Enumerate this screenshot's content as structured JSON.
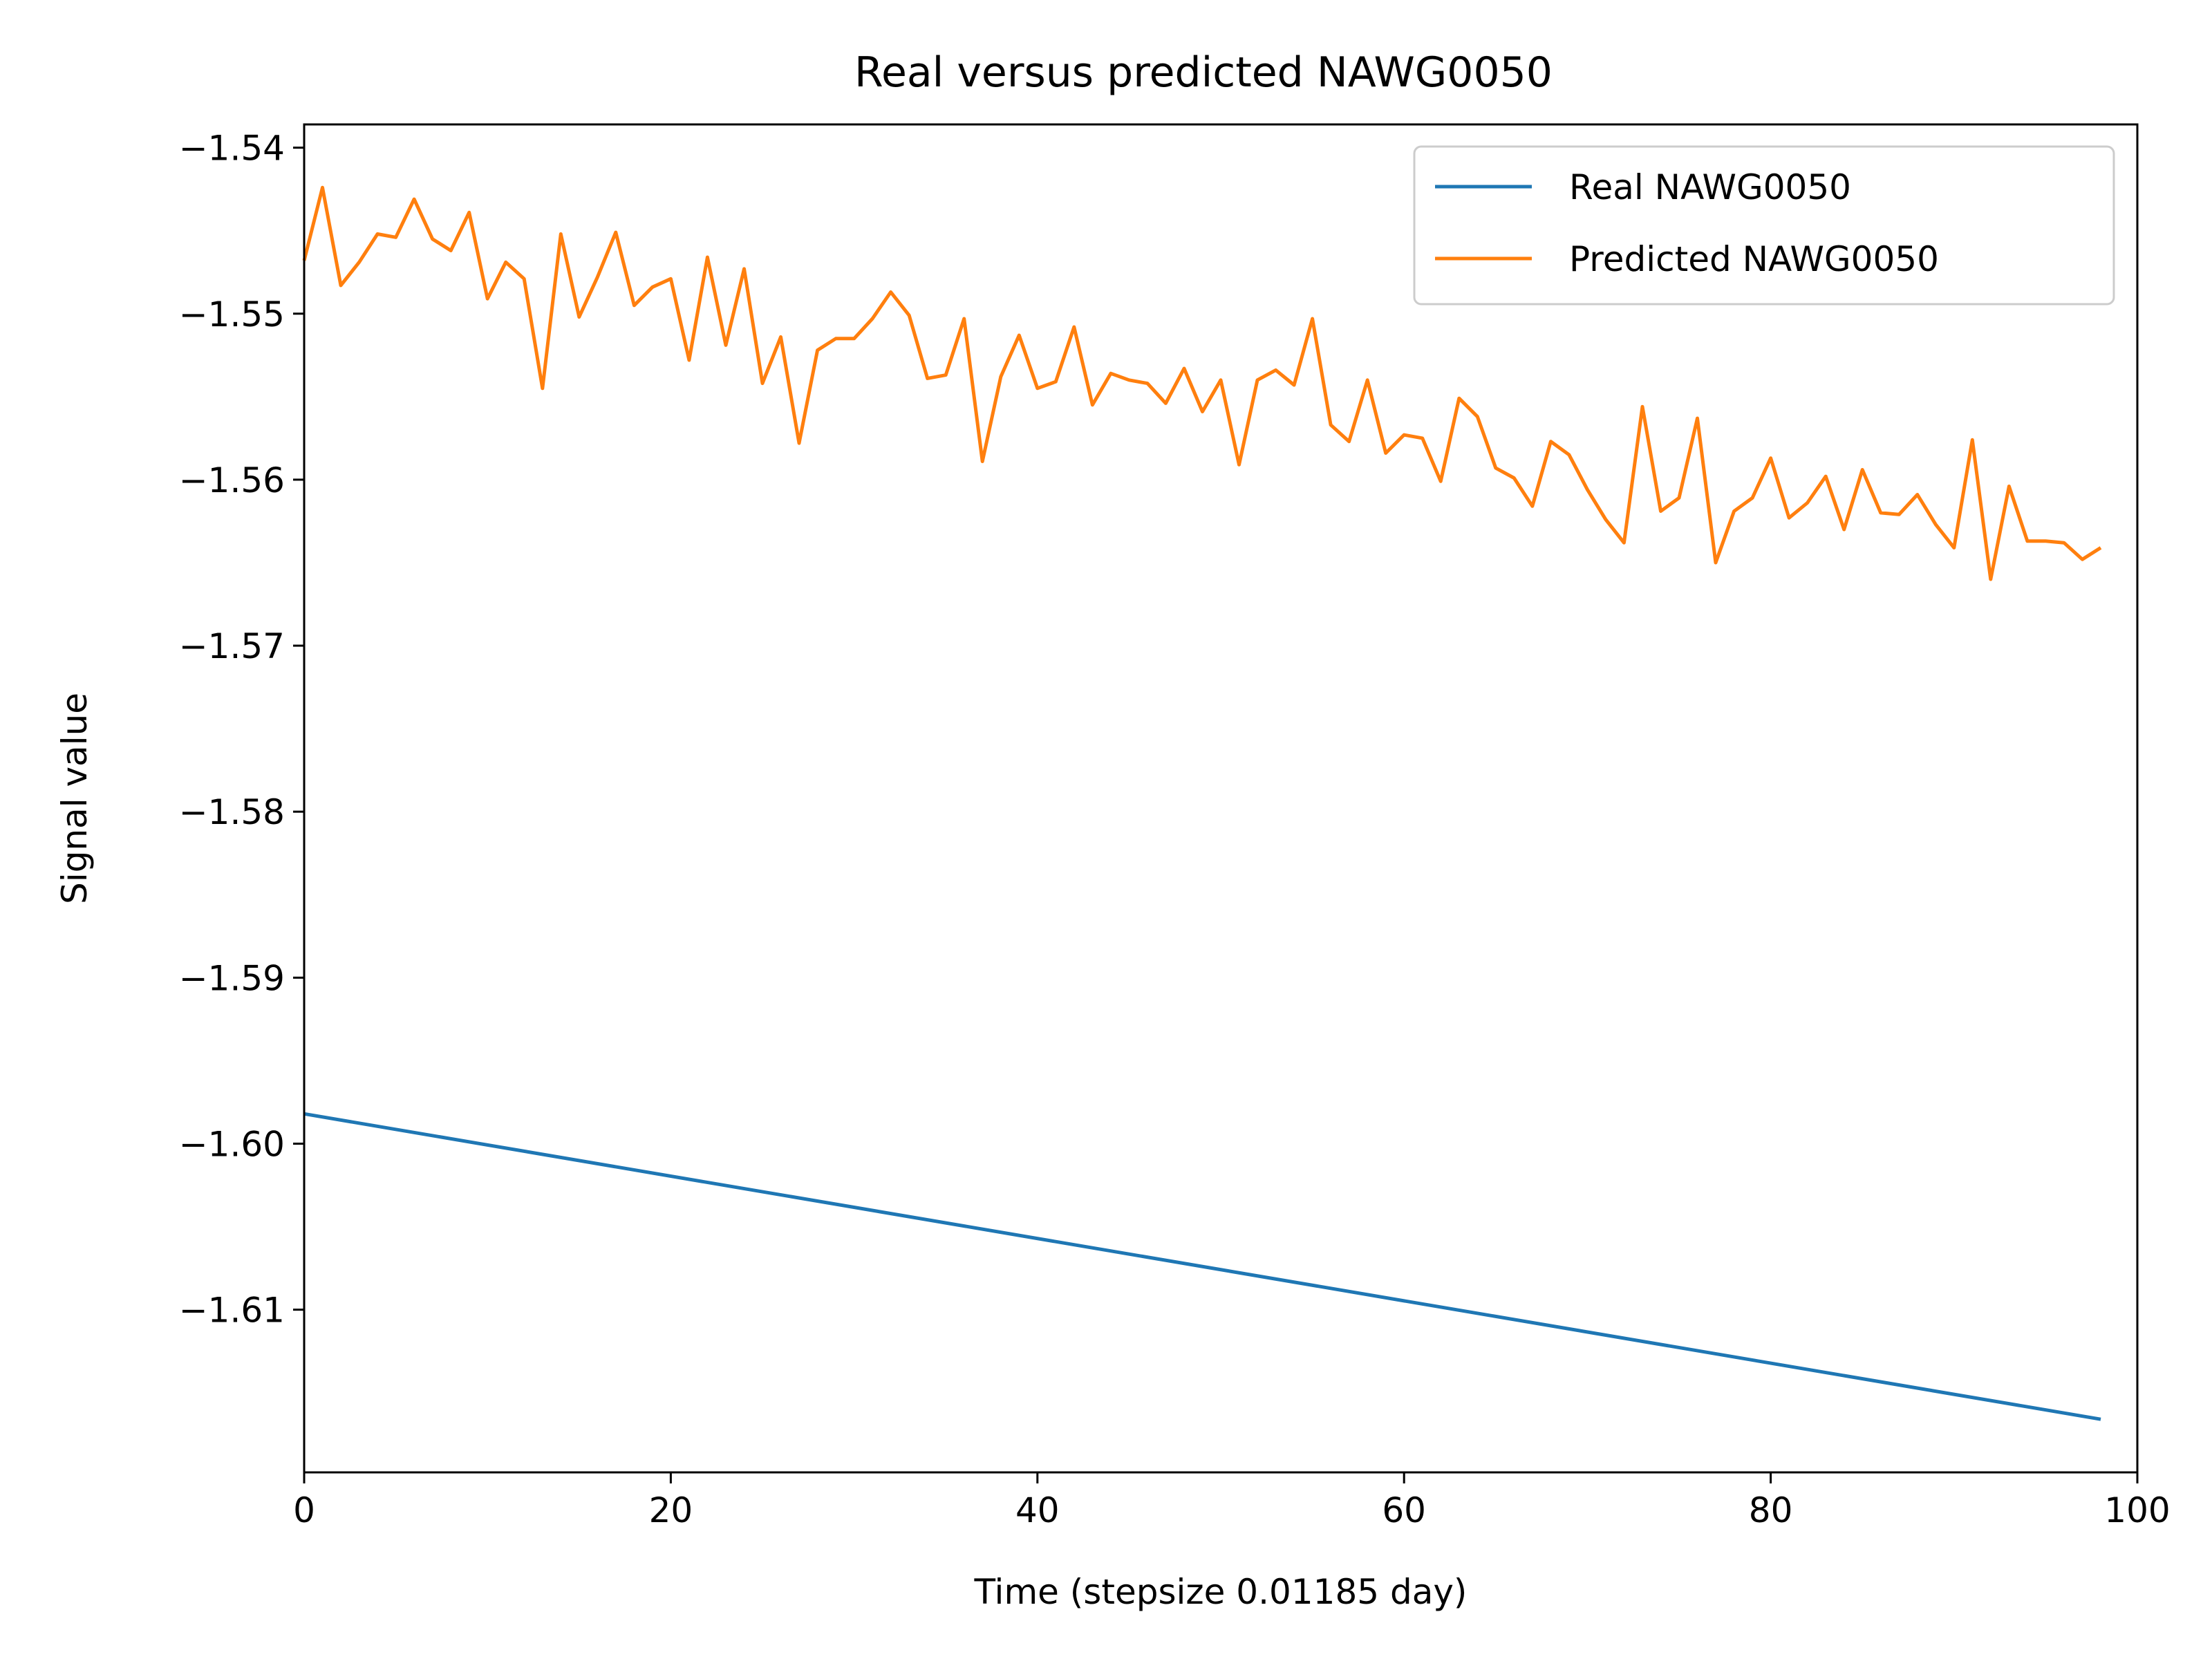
{
  "chart_data": {
    "type": "line",
    "title": "Real versus predicted NAWG0050",
    "xlabel": "Time (stepsize 0.01185 day)",
    "ylabel": "Signal value",
    "xlim": [
      0,
      100
    ],
    "ylim": [
      -1.6198,
      -1.5386
    ],
    "xticks": [
      0,
      20,
      40,
      60,
      80,
      100
    ],
    "xtick_labels": [
      "0",
      "20",
      "40",
      "60",
      "80",
      "100"
    ],
    "yticks": [
      -1.54,
      -1.55,
      -1.56,
      -1.57,
      -1.58,
      -1.59,
      -1.6,
      -1.61
    ],
    "ytick_labels": [
      "−1.54",
      "−1.55",
      "−1.56",
      "−1.57",
      "−1.58",
      "−1.59",
      "−1.60",
      "−1.61"
    ],
    "grid": false,
    "legend_position": "top-right",
    "series": [
      {
        "name": "Real NAWG0050",
        "color": "#1f77b4",
        "x_start": 0,
        "x_step": 1,
        "values": [
          -1.5982,
          -1.6166
        ],
        "x": [
          0,
          98
        ]
      },
      {
        "name": "Predicted NAWG0050",
        "color": "#ff7f0e",
        "x_start": 0,
        "x_step": 1,
        "values": [
          -1.5468,
          -1.5424,
          -1.5483,
          -1.5469,
          -1.5452,
          -1.5454,
          -1.5431,
          -1.5455,
          -1.5462,
          -1.5439,
          -1.5491,
          -1.5469,
          -1.5479,
          -1.5545,
          -1.5452,
          -1.5502,
          -1.5478,
          -1.5451,
          -1.5495,
          -1.5484,
          -1.5479,
          -1.5528,
          -1.5466,
          -1.5519,
          -1.5473,
          -1.5542,
          -1.5514,
          -1.5578,
          -1.5522,
          -1.5515,
          -1.5515,
          -1.5503,
          -1.5487,
          -1.5501,
          -1.5539,
          -1.5537,
          -1.5503,
          -1.5589,
          -1.5538,
          -1.5513,
          -1.5545,
          -1.5541,
          -1.5508,
          -1.5555,
          -1.5536,
          -1.554,
          -1.5542,
          -1.5554,
          -1.5533,
          -1.5559,
          -1.554,
          -1.5591,
          -1.554,
          -1.5534,
          -1.5543,
          -1.5503,
          -1.5567,
          -1.5577,
          -1.554,
          -1.5584,
          -1.5573,
          -1.5575,
          -1.5601,
          -1.5551,
          -1.5562,
          -1.5593,
          -1.5599,
          -1.5616,
          -1.5577,
          -1.5585,
          -1.5606,
          -1.5624,
          -1.5638,
          -1.5556,
          -1.5619,
          -1.5611,
          -1.5563,
          -1.565,
          -1.5619,
          -1.5611,
          -1.5587,
          -1.5623,
          -1.5614,
          -1.5598,
          -1.563,
          -1.5594,
          -1.562,
          -1.5621,
          -1.5609,
          -1.5627,
          -1.5641,
          -1.5576,
          -1.566,
          -1.5604,
          -1.5637,
          -1.5637,
          -1.5638,
          -1.5648,
          -1.5641
        ]
      }
    ]
  }
}
